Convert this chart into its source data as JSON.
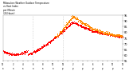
{
  "title_line1": "Milwaukee Weather Outdoor Temperature",
  "title_line2": "vs Heat Index",
  "title_line3": "per Minute",
  "title_line4": "(24 Hours)",
  "background_color": "#ffffff",
  "plot_bg_color": "#ffffff",
  "line1_color": "#ff0000",
  "line2_color": "#ff8800",
  "text_color": "#000000",
  "tick_color": "#000000",
  "vline_color": "#aaaaaa",
  "vline_positions": [
    6,
    12
  ],
  "ylim": [
    55,
    95
  ],
  "yticks": [
    55,
    60,
    65,
    70,
    75,
    80,
    85,
    90,
    95
  ]
}
